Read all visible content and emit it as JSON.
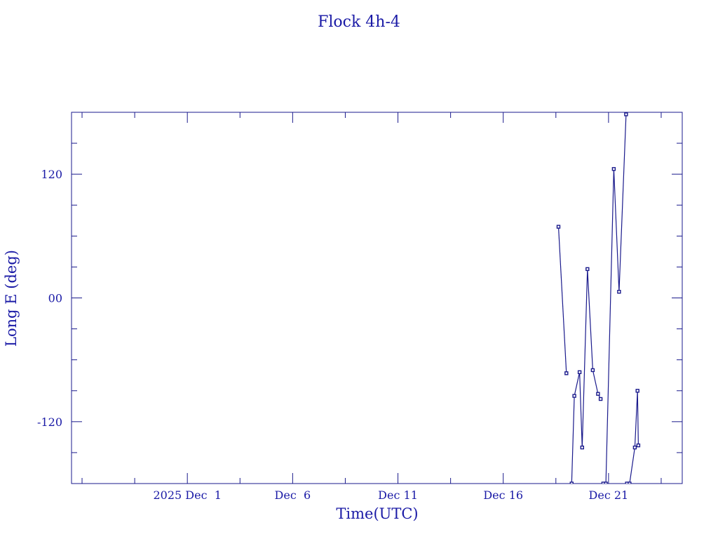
{
  "chart_data": {
    "type": "line",
    "title": "Flock 4h-4",
    "xlabel": "Time(UTC)",
    "ylabel": "Long E (deg)",
    "x_tick_labels": [
      "2025 Dec  1",
      "Dec  6",
      "Dec 11",
      "Dec 16",
      "Dec 21"
    ],
    "y_tick_labels": [
      "-120",
      "00",
      "120"
    ],
    "y_ticks": [
      -120,
      0,
      120
    ],
    "xlim": [
      "2025-11-25T12:00",
      "2025-12-24T12:00"
    ],
    "ylim": [
      -180,
      180
    ],
    "grid": false,
    "colors": {
      "axes": "#1a1a8c",
      "text": "#1a1aa6",
      "series": "#1a1a8c"
    },
    "x_tick_dates": [
      "2025-12-01",
      "2025-12-06",
      "2025-12-11",
      "2025-12-16",
      "2025-12-21"
    ],
    "x": [
      "2025-12-18T15:00",
      "2025-12-19T00:00",
      "2025-12-19T06:00",
      "2025-12-19T09:00",
      "2025-12-19T15:00",
      "2025-12-19T18:00",
      "2025-12-20T00:00",
      "2025-12-20T06:00",
      "2025-12-20T12:00",
      "2025-12-20T15:00",
      "2025-12-20T18:00",
      "2025-12-20T21:00",
      "2025-12-21T06:00",
      "2025-12-21T12:00",
      "2025-12-21T20:00",
      "2025-12-21T21:00",
      "2025-12-22T00:00",
      "2025-12-22T06:00",
      "2025-12-22T09:00",
      "2025-12-22T10:00"
    ],
    "y": [
      69,
      -73,
      -180,
      -95,
      -72,
      -145,
      28,
      -70,
      -93,
      -98,
      -180,
      -180,
      125,
      6,
      178,
      -180,
      -180,
      -145,
      -90,
      -143
    ],
    "breaks_before": [
      2,
      10,
      15
    ]
  }
}
